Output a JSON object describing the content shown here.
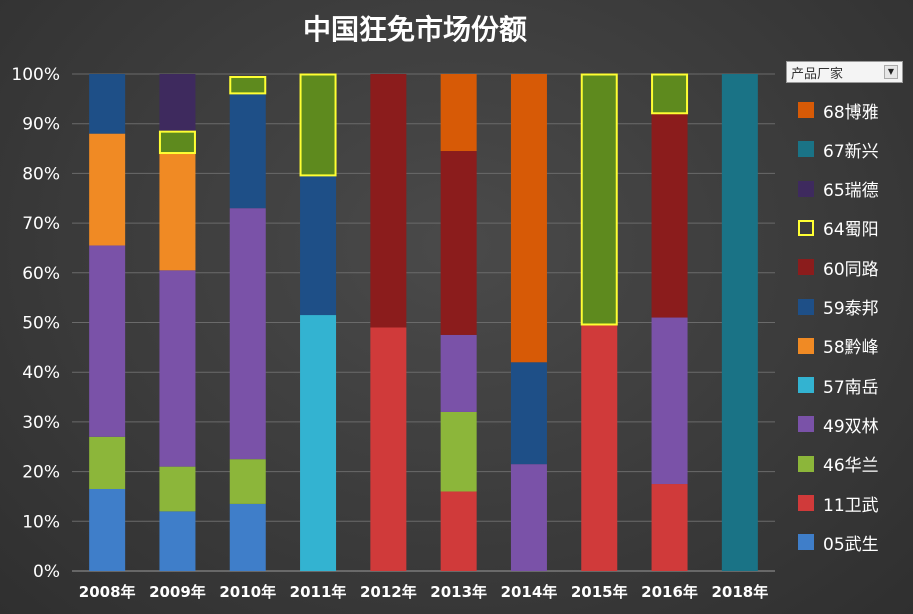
{
  "chart_data": {
    "type": "bar",
    "stacked": "percent",
    "title": "中国狂免市场份额",
    "xlabel": "",
    "ylabel": "",
    "ylim": [
      0,
      100
    ],
    "y_ticks": [
      "0%",
      "10%",
      "20%",
      "30%",
      "40%",
      "50%",
      "60%",
      "70%",
      "80%",
      "90%",
      "100%"
    ],
    "categories": [
      "2008年",
      "2009年",
      "2010年",
      "2011年",
      "2012年",
      "2013年",
      "2014年",
      "2015年",
      "2016年",
      "2018年"
    ],
    "grid": true,
    "legend_position": "right",
    "legend_filter_label": "产品厂家",
    "highlighted_series": "64蜀阳",
    "series": [
      {
        "name": "05武生",
        "color": "#3f7ec9",
        "values": [
          16.5,
          12,
          13.5,
          0,
          0,
          0,
          0,
          0,
          0,
          0
        ]
      },
      {
        "name": "11卫武",
        "color": "#d03a3a",
        "values": [
          0,
          0,
          0,
          0,
          49,
          16,
          0,
          49.5,
          17.5,
          0
        ]
      },
      {
        "name": "46华兰",
        "color": "#8cb63a",
        "values": [
          10.5,
          9,
          9,
          0,
          0,
          16,
          0,
          0,
          0,
          0
        ]
      },
      {
        "name": "49双林",
        "color": "#7a52a8",
        "values": [
          38.5,
          39.5,
          50.5,
          0,
          0,
          15.5,
          21.5,
          0,
          33.5,
          0
        ]
      },
      {
        "name": "57南岳",
        "color": "#33b3d1",
        "values": [
          0,
          0,
          0,
          51.5,
          0,
          0,
          0,
          0,
          0,
          0
        ]
      },
      {
        "name": "58黔峰",
        "color": "#f08a24",
        "values": [
          22.5,
          23.5,
          0,
          0,
          0,
          0,
          0,
          0,
          0,
          0
        ]
      },
      {
        "name": "59泰邦",
        "color": "#1e4f87",
        "values": [
          12,
          0,
          23,
          28,
          0,
          0,
          20.5,
          0,
          0,
          0
        ]
      },
      {
        "name": "60同路",
        "color": "#8b1c1c",
        "values": [
          0,
          0,
          0,
          0,
          51,
          37,
          0,
          0,
          41,
          0
        ]
      },
      {
        "name": "64蜀阳",
        "color": "#5e8a1e",
        "values": [
          0,
          4.5,
          3.5,
          20.5,
          0,
          0,
          0,
          50.5,
          8,
          0
        ]
      },
      {
        "name": "65瑞德",
        "color": "#3e2a5e",
        "values": [
          0,
          11.5,
          0,
          0,
          0,
          0,
          0,
          0,
          0,
          0
        ]
      },
      {
        "name": "67新兴",
        "color": "#1a7386",
        "values": [
          0,
          0,
          0,
          0,
          0,
          0,
          0,
          0,
          0,
          100
        ]
      },
      {
        "name": "68博雅",
        "color": "#d75a06",
        "values": [
          0,
          0,
          0,
          0,
          0,
          15.5,
          58,
          0,
          0,
          0
        ]
      }
    ]
  }
}
